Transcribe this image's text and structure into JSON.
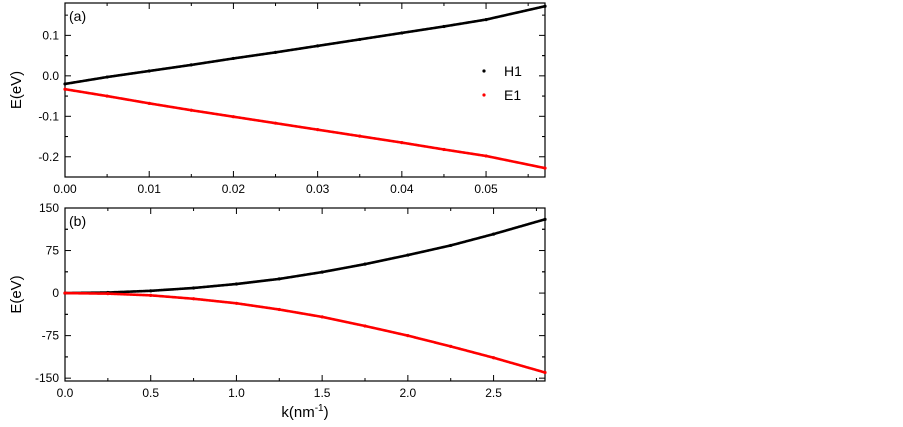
{
  "chart_data": [
    {
      "type": "scatter",
      "panel_label": "(a)",
      "ylabel": "E(eV)",
      "xlabel": "",
      "xlim": [
        0,
        0.057
      ],
      "ylim": [
        -0.25,
        0.18
      ],
      "xticks": [
        "0.00",
        "0.01",
        "0.02",
        "0.03",
        "0.04",
        "0.05"
      ],
      "xtick_values": [
        0,
        0.01,
        0.02,
        0.03,
        0.04,
        0.05
      ],
      "yticks": [
        "0.1",
        "0.0",
        "-0.1",
        "-0.2"
      ],
      "ytick_values": [
        0.1,
        0.0,
        -0.1,
        -0.2
      ],
      "legend_position": "right",
      "series": [
        {
          "name": "H1",
          "color": "#000000",
          "x": [
            0,
            0.005,
            0.01,
            0.015,
            0.02,
            0.025,
            0.03,
            0.035,
            0.04,
            0.045,
            0.05,
            0.057
          ],
          "y": [
            -0.02,
            -0.003,
            0.012,
            0.027,
            0.043,
            0.058,
            0.074,
            0.09,
            0.106,
            0.122,
            0.139,
            0.172
          ]
        },
        {
          "name": "E1",
          "color": "#ff0000",
          "x": [
            0,
            0.005,
            0.01,
            0.015,
            0.02,
            0.025,
            0.03,
            0.035,
            0.04,
            0.045,
            0.05,
            0.057
          ],
          "y": [
            -0.033,
            -0.05,
            -0.068,
            -0.085,
            -0.101,
            -0.117,
            -0.133,
            -0.149,
            -0.165,
            -0.182,
            -0.198,
            -0.228
          ]
        }
      ]
    },
    {
      "type": "scatter",
      "panel_label": "(b)",
      "ylabel": "E(eV)",
      "xlabel": "k(nm",
      "xlabel_sup": "-1",
      "xlabel_end": ")",
      "xlim": [
        0,
        2.8
      ],
      "ylim": [
        -155,
        150
      ],
      "xticks": [
        "0.0",
        "0.5",
        "1.0",
        "1.5",
        "2.0",
        "2.5"
      ],
      "xtick_values": [
        0,
        0.5,
        1.0,
        1.5,
        2.0,
        2.5
      ],
      "yticks": [
        "150",
        "75",
        "0",
        "-75",
        "-150"
      ],
      "ytick_values": [
        150,
        75,
        0,
        -75,
        -150
      ],
      "series": [
        {
          "name": "",
          "color": "#000000",
          "x": [
            0,
            0.25,
            0.5,
            0.75,
            1.0,
            1.25,
            1.5,
            1.75,
            2.0,
            2.25,
            2.5,
            2.8
          ],
          "y": [
            0,
            1,
            4,
            9,
            16,
            25,
            37,
            51,
            67,
            84,
            104,
            130
          ]
        },
        {
          "name": "",
          "color": "#ff0000",
          "x": [
            0,
            0.25,
            0.5,
            0.75,
            1.0,
            1.25,
            1.5,
            1.75,
            2.0,
            2.25,
            2.5,
            2.8
          ],
          "y": [
            0,
            -1,
            -4,
            -10,
            -18,
            -29,
            -42,
            -58,
            -75,
            -94,
            -114,
            -140
          ]
        }
      ]
    }
  ]
}
